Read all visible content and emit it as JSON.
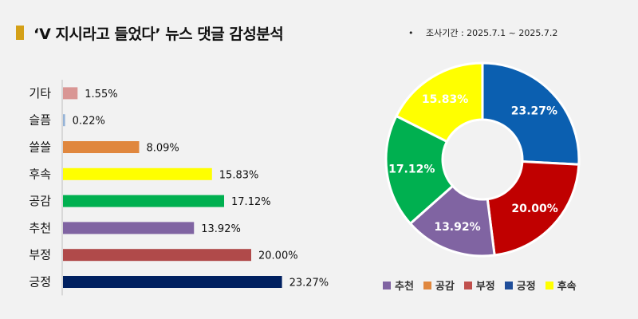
{
  "title": "‘V 지시라고 들었다’ 뉴스 댓글 감성분석",
  "survey_bullet": "•",
  "survey_period": "조사기간 : 2025.7.1 ~ 2025.7.2",
  "chart_data": [
    {
      "type": "bar",
      "orientation": "horizontal",
      "categories": [
        "기타",
        "슬픔",
        "쓸쓸",
        "후속",
        "공감",
        "추천",
        "부정",
        "긍정"
      ],
      "values": [
        1.55,
        0.22,
        8.09,
        15.83,
        17.12,
        13.92,
        20.0,
        23.27
      ],
      "value_labels": [
        "1.55%",
        "0.22%",
        "8.09%",
        "15.83%",
        "17.12%",
        "13.92%",
        "20.00%",
        "23.27%"
      ],
      "colors": [
        "#d99694",
        "#95b3d7",
        "#e0873e",
        "#ffff00",
        "#00b050",
        "#8064a2",
        "#b04a4a",
        "#002060"
      ],
      "unit": "%",
      "xlim": [
        0,
        25
      ]
    },
    {
      "type": "pie",
      "style": "donut",
      "slices": [
        {
          "label": "긍정",
          "value": 23.27,
          "text": "23.27%",
          "color": "#0b5fb0"
        },
        {
          "label": "부정",
          "value": 20.0,
          "text": "20.00%",
          "color": "#c00000"
        },
        {
          "label": "추천",
          "value": 13.92,
          "text": "13.92%",
          "color": "#8064a2"
        },
        {
          "label": "공감",
          "value": 17.12,
          "text": "17.12%",
          "color": "#00b050"
        },
        {
          "label": "후속",
          "value": 15.83,
          "text": "15.83%",
          "color": "#ffff00"
        }
      ],
      "legend": [
        {
          "label": "추천",
          "color": "#8064a2"
        },
        {
          "label": "공감",
          "color": "#e0873e"
        },
        {
          "label": "부정",
          "color": "#c0504d"
        },
        {
          "label": "긍정",
          "color": "#1f4e9a"
        },
        {
          "label": "후속",
          "color": "#ffff00"
        }
      ],
      "legend_position": "bottom"
    }
  ]
}
